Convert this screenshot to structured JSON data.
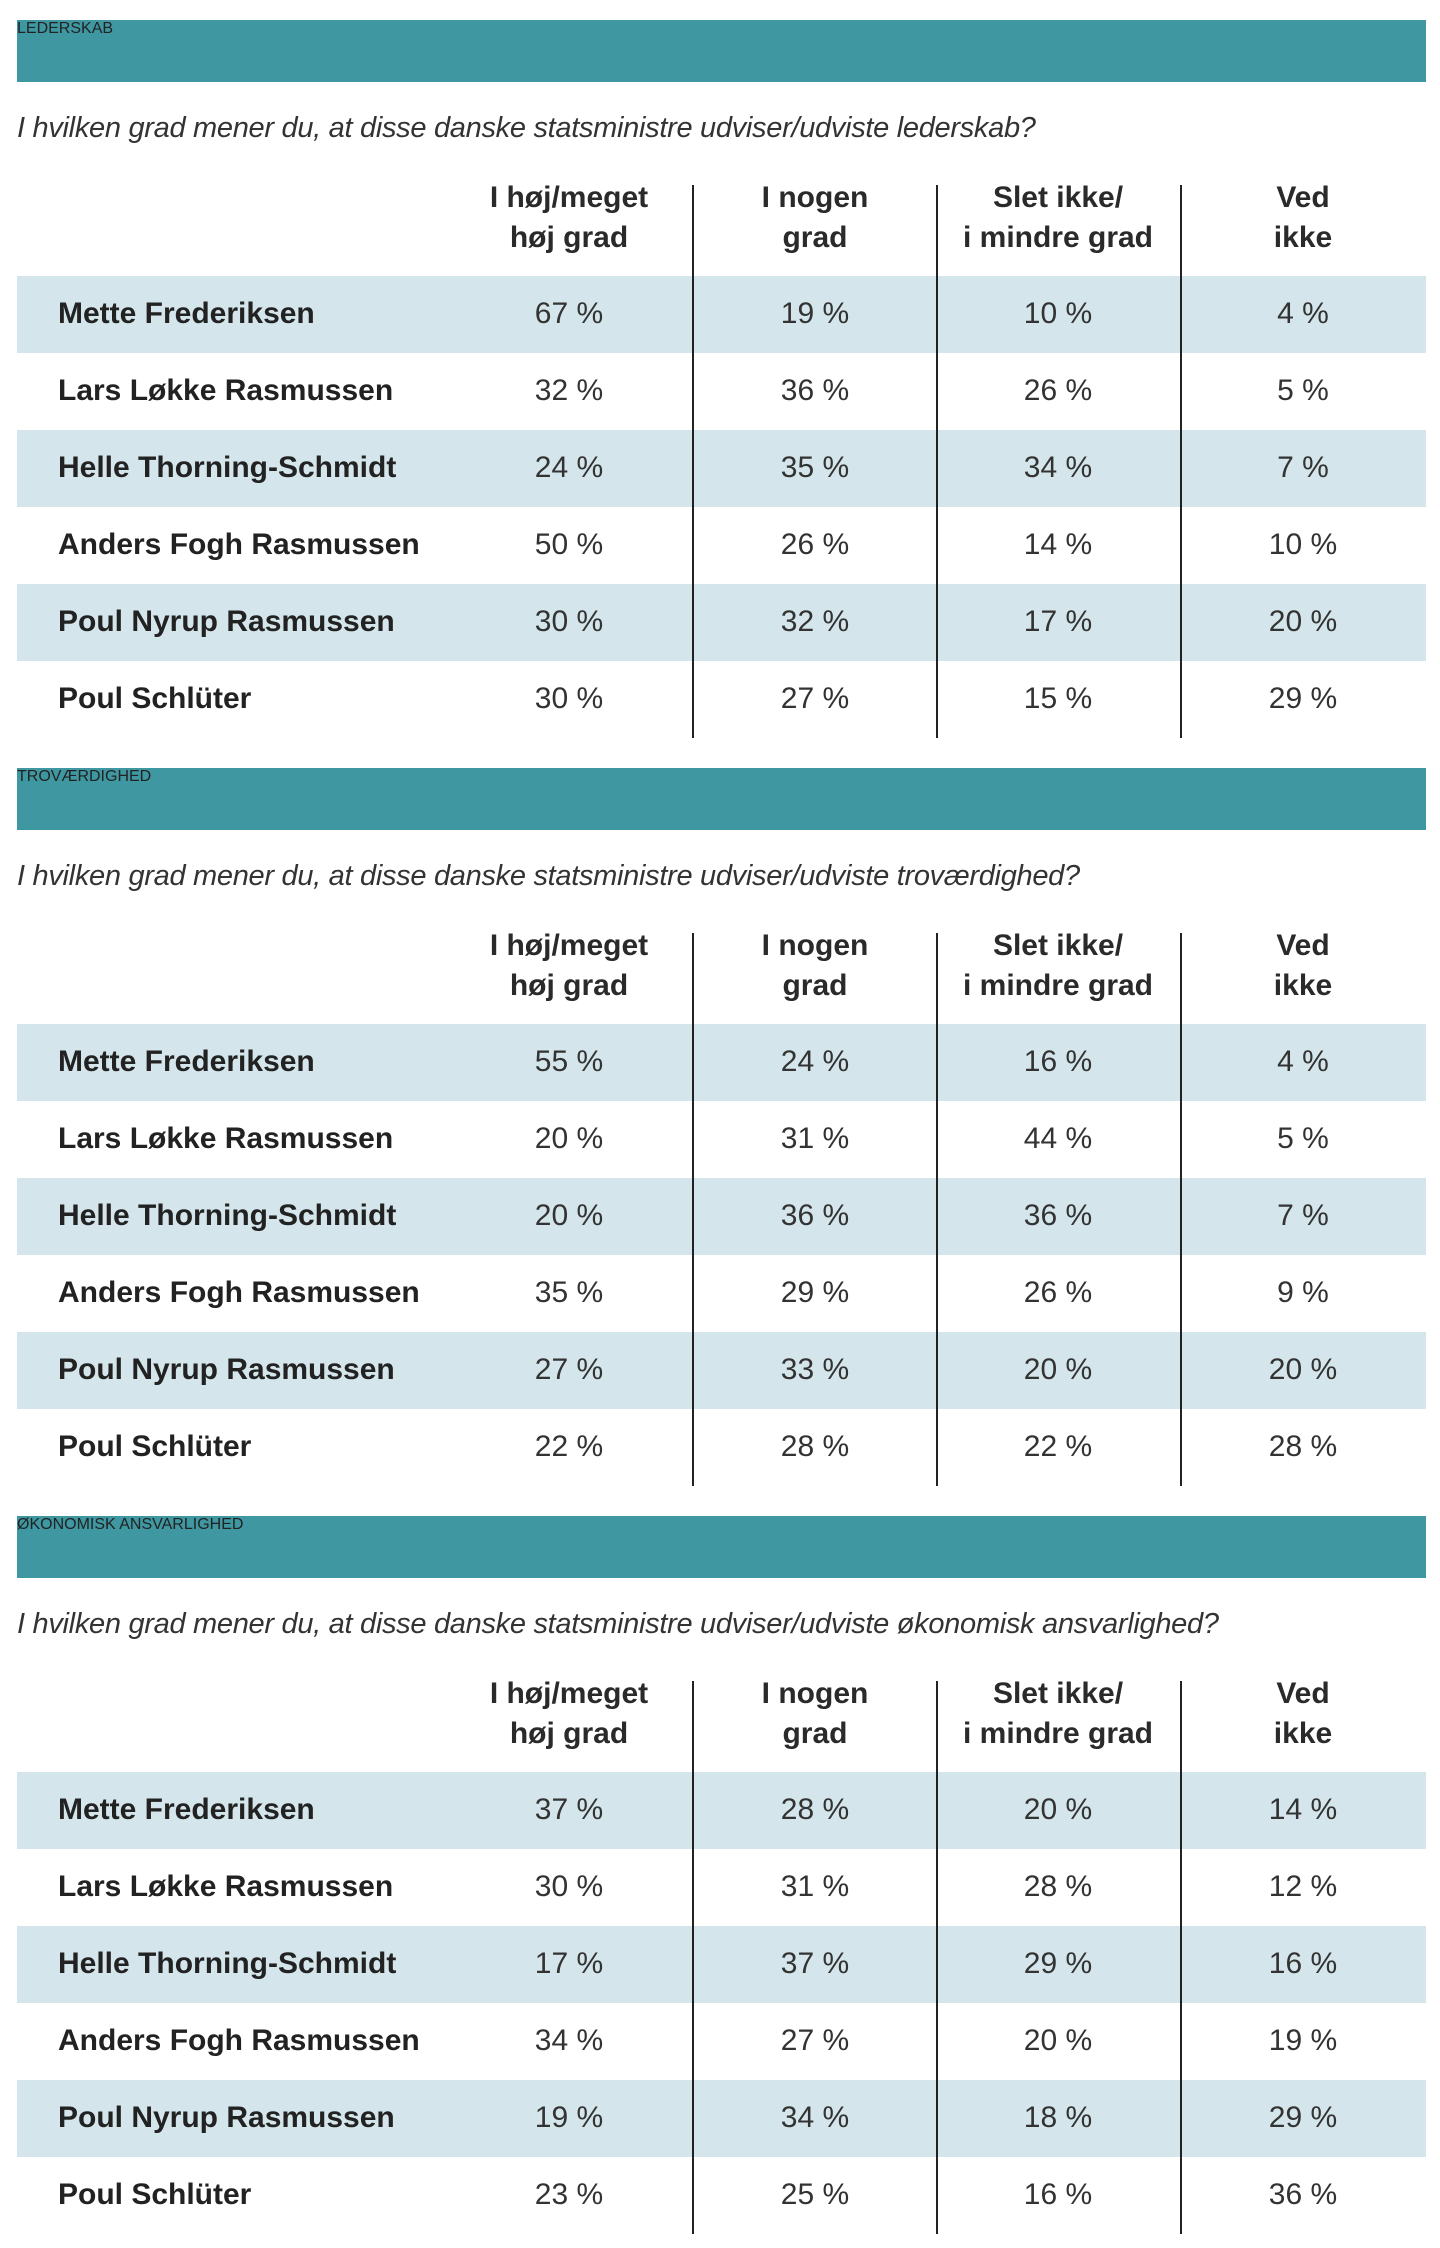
{
  "colors": {
    "header_bar": "#3f98a1",
    "row_stripe": "#d4e6eb",
    "header_text": "#ffffff"
  },
  "columns": [
    "I høj/meget\nhøj grad",
    "I nogen\ngrad",
    "Slet ikke/\ni mindre grad",
    "Ved\nikke"
  ],
  "sections": [
    {
      "title": "LEDERSKAB",
      "question": "I hvilken grad mener du, at disse danske statsministre udviser/udviste lederskab?",
      "rows": [
        {
          "name": "Mette Frederiksen",
          "values": [
            "67 %",
            "19 %",
            "10 %",
            "4 %"
          ]
        },
        {
          "name": "Lars Løkke Rasmussen",
          "values": [
            "32 %",
            "36 %",
            "26 %",
            "5 %"
          ]
        },
        {
          "name": "Helle Thorning-Schmidt",
          "values": [
            "24 %",
            "35 %",
            "34 %",
            "7 %"
          ]
        },
        {
          "name": "Anders Fogh Rasmussen",
          "values": [
            "50 %",
            "26 %",
            "14 %",
            "10 %"
          ]
        },
        {
          "name": "Poul Nyrup Rasmussen",
          "values": [
            "30 %",
            "32 %",
            "17 %",
            "20 %"
          ]
        },
        {
          "name": "Poul Schlüter",
          "values": [
            "30 %",
            "27 %",
            "15 %",
            "29 %"
          ]
        }
      ]
    },
    {
      "title": "TROVÆRDIGHED",
      "question": "I hvilken grad mener du, at disse danske statsministre udviser/udviste troværdighed?",
      "rows": [
        {
          "name": "Mette Frederiksen",
          "values": [
            "55 %",
            "24 %",
            "16 %",
            "4 %"
          ]
        },
        {
          "name": "Lars Løkke Rasmussen",
          "values": [
            "20 %",
            "31 %",
            "44 %",
            "5 %"
          ]
        },
        {
          "name": "Helle Thorning-Schmidt",
          "values": [
            "20 %",
            "36 %",
            "36 %",
            "7 %"
          ]
        },
        {
          "name": "Anders Fogh Rasmussen",
          "values": [
            "35 %",
            "29 %",
            "26 %",
            "9 %"
          ]
        },
        {
          "name": "Poul Nyrup Rasmussen",
          "values": [
            "27 %",
            "33 %",
            "20 %",
            "20 %"
          ]
        },
        {
          "name": "Poul Schlüter",
          "values": [
            "22 %",
            "28 %",
            "22 %",
            "28 %"
          ]
        }
      ]
    },
    {
      "title": "ØKONOMISK ANSVARLIGHED",
      "question": "I hvilken grad mener du, at disse danske statsministre udviser/udviste økonomisk ansvarlighed?",
      "rows": [
        {
          "name": "Mette Frederiksen",
          "values": [
            "37 %",
            "28 %",
            "20 %",
            "14 %"
          ]
        },
        {
          "name": "Lars Løkke Rasmussen",
          "values": [
            "30 %",
            "31 %",
            "28 %",
            "12 %"
          ]
        },
        {
          "name": "Helle Thorning-Schmidt",
          "values": [
            "17 %",
            "37 %",
            "29 %",
            "16 %"
          ]
        },
        {
          "name": "Anders Fogh Rasmussen",
          "values": [
            "34 %",
            "27 %",
            "20 %",
            "19 %"
          ]
        },
        {
          "name": "Poul Nyrup Rasmussen",
          "values": [
            "19 %",
            "34 %",
            "18 %",
            "29 %"
          ]
        },
        {
          "name": "Poul Schlüter",
          "values": [
            "23 %",
            "25 %",
            "16 %",
            "36 %"
          ]
        }
      ]
    }
  ]
}
